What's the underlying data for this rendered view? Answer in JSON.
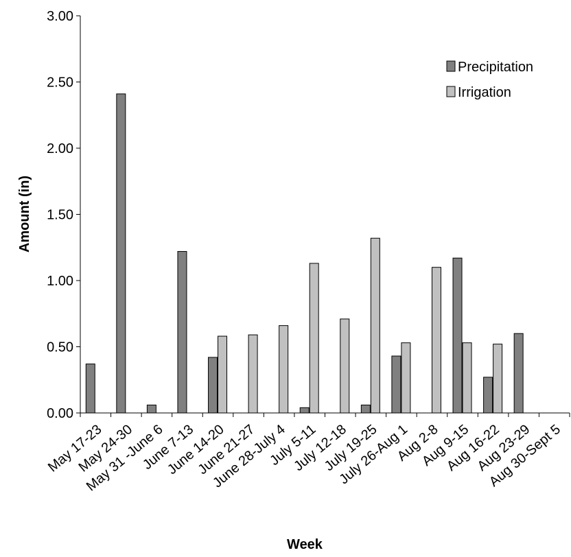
{
  "chart_data": {
    "type": "bar",
    "title": "",
    "xlabel": "Week",
    "ylabel": "Amount (in)",
    "ylim": [
      0,
      3
    ],
    "yticks": [
      "0.00",
      "0.50",
      "1.00",
      "1.50",
      "2.00",
      "2.50",
      "3.00"
    ],
    "grid": false,
    "legend_position": "top-right",
    "categories": [
      "May 17-23",
      "May 24-30",
      "May 31 -June 6",
      "June 7-13",
      "June 14-20",
      "June 21-27",
      "June 28-July 4",
      "July 5-11",
      "July 12-18",
      "July 19-25",
      "July 26-Aug 1",
      "Aug 2-8",
      "Aug 9-15",
      "Aug 16-22",
      "Aug 23-29",
      "Aug 30-Sept 5"
    ],
    "series": [
      {
        "name": "Precipitation",
        "color": "#808080",
        "values": [
          0.37,
          2.41,
          0.06,
          1.22,
          0.42,
          0,
          0,
          0.04,
          0,
          0.06,
          0.43,
          0,
          1.17,
          0.27,
          0.6,
          0
        ]
      },
      {
        "name": "Irrigation",
        "color": "#c0c0c0",
        "values": [
          0,
          0,
          0,
          0,
          0.58,
          0.59,
          0.66,
          1.13,
          0.71,
          1.32,
          0.53,
          1.1,
          0.53,
          0.52,
          0,
          0
        ]
      }
    ]
  }
}
